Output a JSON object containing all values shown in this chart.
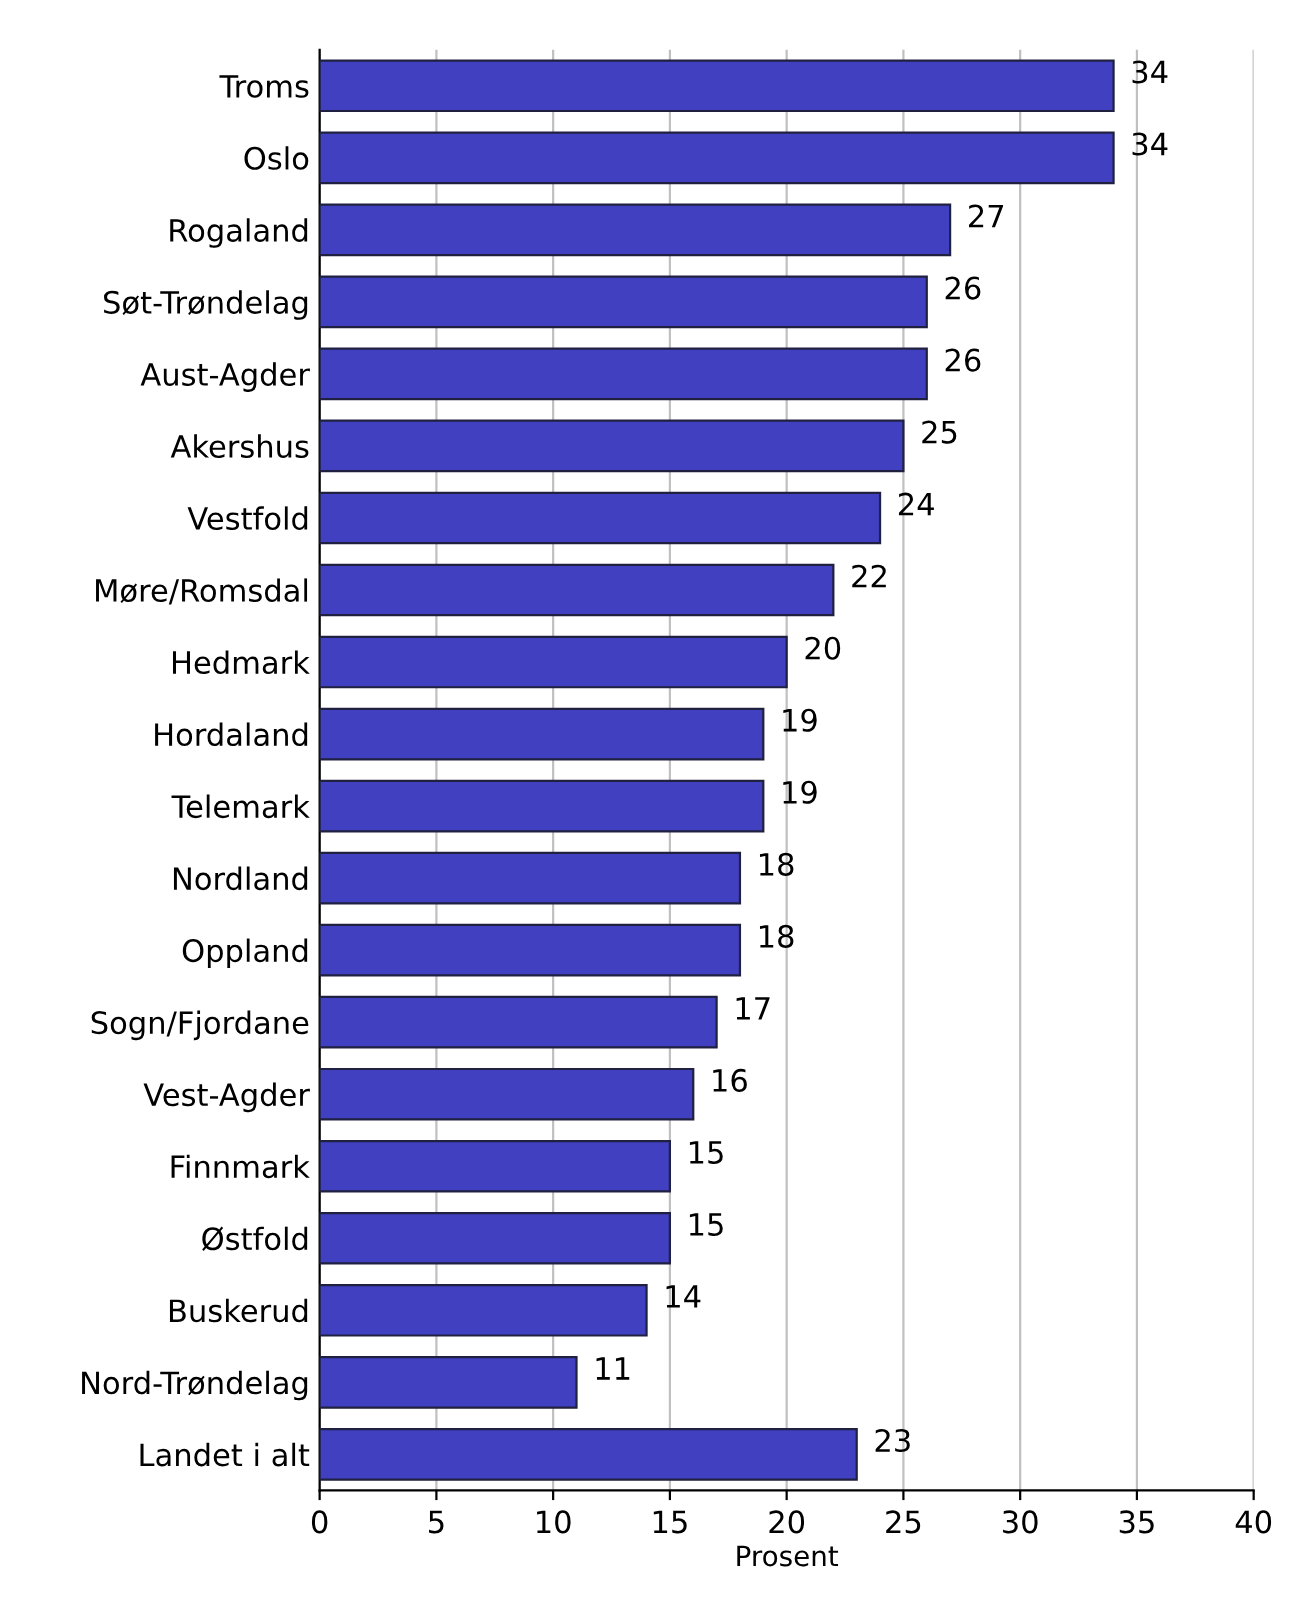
{
  "chart_data": {
    "type": "bar",
    "orientation": "horizontal",
    "xlabel": "Prosent",
    "categories": [
      "Troms",
      "Oslo",
      "Rogaland",
      "Søt-Trøndelag",
      "Aust-Agder",
      "Akershus",
      "Vestfold",
      "Møre/Romsdal",
      "Hedmark",
      "Hordaland",
      "Telemark",
      "Nordland",
      "Oppland",
      "Sogn/Fjordane",
      "Vest-Agder",
      "Finnmark",
      "Østfold",
      "Buskerud",
      "Nord-Trøndelag",
      "Landet i alt"
    ],
    "values": [
      34,
      34,
      27,
      26,
      26,
      25,
      24,
      22,
      20,
      19,
      19,
      18,
      18,
      17,
      16,
      15,
      15,
      14,
      11,
      23
    ],
    "color": "#4040c0",
    "xlim": [
      0,
      40
    ],
    "xticks": [
      0,
      5,
      10,
      15,
      20,
      25,
      30,
      35,
      40
    ],
    "grid": "x",
    "data_labels": true
  }
}
